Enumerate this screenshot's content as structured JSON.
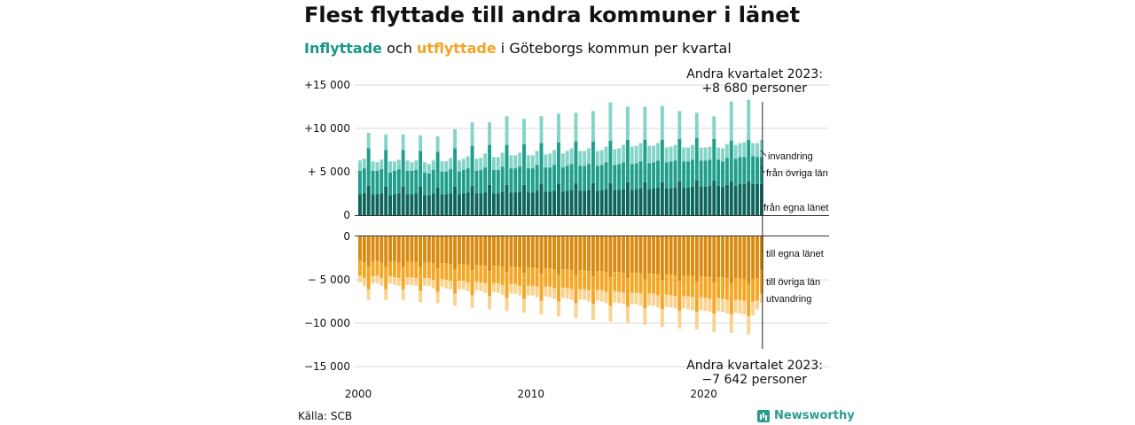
{
  "title": "Flest flyttade till andra kommuner i länet",
  "subtitle": {
    "in_label": "Inflyttade",
    "and_label": "och",
    "out_label": "utflyttade",
    "rest": "i Göteborgs  kommun  per  kvartal"
  },
  "source": "Källa: SCB",
  "brand": "Newsworthy",
  "colors": {
    "in_own_county": "#0d665c",
    "in_other_counties": "#1f9e8b",
    "in_immigration": "#85d4c8",
    "out_own_county": "#d98a10",
    "out_other_counties": "#f5a623",
    "out_emigration": "#f9d38f",
    "grid": "#d9d9d9"
  },
  "chart_data": {
    "type": "bar",
    "stacked": true,
    "x_ticks": [
      "2000",
      "2010",
      "2020"
    ],
    "y_ticks": [
      "+15 000",
      "+10 000",
      "+ 5 000",
      "0",
      "0",
      "− 5 000",
      "−10 000",
      "−15 000"
    ],
    "y_in_range": [
      0,
      15000
    ],
    "y_out_range": [
      -15000,
      0
    ],
    "grid": true,
    "labels": {
      "invandring": "invandring",
      "fran_ovriga": "från övriga län",
      "fran_egna": "från egna länet",
      "till_egna": "till egna länet",
      "till_ovriga": "till övriga län",
      "utvandring": "utvandring"
    },
    "annotations": {
      "top_line1": "Andra kvartalet 2023:",
      "top_line2": "+8 680 personer",
      "bottom_line1": "Andra kvartalet 2023:",
      "bottom_line2": "−7 642 personer"
    },
    "quarters_start": "2000 Q1",
    "quarters_end": "2023 Q2",
    "inflow_series": [
      {
        "name": "från egna länet",
        "values": [
          2400,
          2500,
          3400,
          2400,
          2400,
          2500,
          3300,
          2300,
          2400,
          2500,
          3300,
          2400,
          2400,
          2500,
          3300,
          2300,
          2300,
          2500,
          3200,
          2400,
          2400,
          2500,
          3300,
          2400,
          2500,
          2600,
          3400,
          2500,
          2500,
          2600,
          3500,
          2500,
          2500,
          2700,
          3500,
          2600,
          2600,
          2700,
          3500,
          2600,
          2600,
          2800,
          3600,
          2700,
          2700,
          2800,
          3600,
          2700,
          2800,
          2900,
          3700,
          2800,
          2800,
          2900,
          3700,
          2800,
          2900,
          3000,
          3700,
          2900,
          2900,
          3000,
          3800,
          2900,
          3000,
          3100,
          3800,
          3000,
          3100,
          3200,
          3800,
          3100,
          3100,
          3200,
          3900,
          3200,
          3200,
          3300,
          4000,
          3300,
          3300,
          3400,
          4000,
          3400,
          3300,
          3500,
          3900,
          3400,
          3600,
          3600,
          3900,
          3600,
          3600,
          3600
        ]
      },
      {
        "name": "från övriga län",
        "values": [
          2700,
          2900,
          4300,
          2700,
          2700,
          2800,
          4200,
          2600,
          2700,
          2800,
          4200,
          2700,
          2700,
          2700,
          4100,
          2600,
          2500,
          2700,
          4100,
          2600,
          2600,
          2800,
          4400,
          2600,
          2700,
          2800,
          4600,
          2600,
          2700,
          2900,
          4600,
          2700,
          2700,
          2900,
          4600,
          2800,
          2800,
          2900,
          4700,
          2800,
          2800,
          3000,
          4700,
          2800,
          2800,
          3000,
          4800,
          2800,
          2900,
          3000,
          4800,
          2900,
          2900,
          3000,
          4800,
          2900,
          2900,
          3100,
          4900,
          2900,
          3000,
          3100,
          4900,
          3000,
          3000,
          3100,
          4900,
          3000,
          3000,
          3100,
          4900,
          3000,
          3100,
          3100,
          4900,
          3000,
          3000,
          3100,
          4900,
          3000,
          3000,
          3000,
          4800,
          3000,
          2900,
          3100,
          4700,
          3100,
          3100,
          3100,
          4800,
          3200,
          3100,
          3100
        ]
      },
      {
        "name": "invandring",
        "values": [
          1200,
          1100,
          1800,
          1100,
          1000,
          1100,
          1800,
          1300,
          1100,
          1100,
          1800,
          1200,
          1000,
          1100,
          1800,
          1200,
          1100,
          1100,
          1800,
          1200,
          1200,
          1300,
          2200,
          1300,
          1300,
          1400,
          2700,
          1400,
          1400,
          1600,
          2600,
          1500,
          1500,
          1600,
          3300,
          1500,
          1500,
          1600,
          2900,
          1500,
          1500,
          1600,
          3100,
          1500,
          1600,
          1700,
          3300,
          1600,
          1700,
          1800,
          3300,
          1700,
          1700,
          1800,
          3500,
          1700,
          1700,
          1800,
          4400,
          1800,
          1800,
          2000,
          3800,
          2000,
          2000,
          2100,
          3800,
          2000,
          1900,
          2000,
          3900,
          1700,
          1700,
          1800,
          3200,
          1600,
          1600,
          1700,
          2900,
          1500,
          1500,
          1500,
          2600,
          1400,
          1500,
          1600,
          4500,
          1600,
          1600,
          1700,
          4600,
          1500,
          1600,
          1980
        ]
      }
    ],
    "outflow_series": [
      {
        "name": "till egna länet",
        "values": [
          -2800,
          -3000,
          -3500,
          -2900,
          -2800,
          -3000,
          -3500,
          -2900,
          -2900,
          -3000,
          -3500,
          -2900,
          -2900,
          -3000,
          -3600,
          -3000,
          -3000,
          -3100,
          -3700,
          -3100,
          -3100,
          -3200,
          -3800,
          -3200,
          -3200,
          -3300,
          -3900,
          -3300,
          -3300,
          -3400,
          -4000,
          -3400,
          -3400,
          -3500,
          -4100,
          -3500,
          -3500,
          -3600,
          -4200,
          -3600,
          -3600,
          -3700,
          -4300,
          -3700,
          -3700,
          -3800,
          -4400,
          -3800,
          -3800,
          -3900,
          -4500,
          -3900,
          -3900,
          -4000,
          -4600,
          -4000,
          -4000,
          -4100,
          -4700,
          -4100,
          -4100,
          -4200,
          -4800,
          -4200,
          -4200,
          -4300,
          -4900,
          -4300,
          -4300,
          -4400,
          -5000,
          -4400,
          -4400,
          -4500,
          -5100,
          -4500,
          -4500,
          -4600,
          -5200,
          -4600,
          -4600,
          -4700,
          -5300,
          -4700,
          -4700,
          -4800,
          -5400,
          -4800,
          -4800,
          -4900,
          -5500,
          -4900,
          -4800,
          -3800
        ]
      },
      {
        "name": "till övriga län",
        "values": [
          -1700,
          -1800,
          -2600,
          -1700,
          -1700,
          -1800,
          -2600,
          -1700,
          -1800,
          -1800,
          -2600,
          -1800,
          -1800,
          -1800,
          -2700,
          -1800,
          -1800,
          -1900,
          -2700,
          -1800,
          -1900,
          -1900,
          -2800,
          -1900,
          -1900,
          -2000,
          -2900,
          -1900,
          -2000,
          -2000,
          -2900,
          -2000,
          -2000,
          -2100,
          -3000,
          -2000,
          -2000,
          -2100,
          -3000,
          -2100,
          -2100,
          -2100,
          -3100,
          -2100,
          -2100,
          -2200,
          -3100,
          -2100,
          -2200,
          -2200,
          -3200,
          -2200,
          -2200,
          -2200,
          -3200,
          -2200,
          -2200,
          -2300,
          -3300,
          -2200,
          -2300,
          -2300,
          -3300,
          -2300,
          -2300,
          -2300,
          -3400,
          -2300,
          -2300,
          -2400,
          -3400,
          -2300,
          -2400,
          -2400,
          -3500,
          -2400,
          -2400,
          -2400,
          -3500,
          -2400,
          -2500,
          -2500,
          -3600,
          -2400,
          -2500,
          -2500,
          -3600,
          -2500,
          -2500,
          -2500,
          -3700,
          -2600,
          -2600,
          -2800
        ]
      },
      {
        "name": "utvandring",
        "values": [
          -800,
          -900,
          -1200,
          -800,
          -900,
          -900,
          -1200,
          -800,
          -900,
          -900,
          -1200,
          -900,
          -900,
          -900,
          -1300,
          -900,
          -900,
          -1000,
          -1300,
          -900,
          -1000,
          -1000,
          -1400,
          -1000,
          -1000,
          -1000,
          -1400,
          -1000,
          -1000,
          -1100,
          -1500,
          -1000,
          -1100,
          -1100,
          -1500,
          -1100,
          -1100,
          -1100,
          -1600,
          -1100,
          -1100,
          -1200,
          -1600,
          -1100,
          -1200,
          -1200,
          -1700,
          -1200,
          -1200,
          -1200,
          -1700,
          -1200,
          -1200,
          -1300,
          -1800,
          -1200,
          -1300,
          -1300,
          -1800,
          -1300,
          -1300,
          -1300,
          -1900,
          -1300,
          -1300,
          -1400,
          -1900,
          -1400,
          -1400,
          -1400,
          -2000,
          -1400,
          -1400,
          -1400,
          -2000,
          -1400,
          -1500,
          -1500,
          -2000,
          -1500,
          -1500,
          -1500,
          -2100,
          -1500,
          -1500,
          -1600,
          -2100,
          -1500,
          -1600,
          -1600,
          -2100,
          -1600,
          -1000,
          -1042
        ]
      }
    ]
  }
}
